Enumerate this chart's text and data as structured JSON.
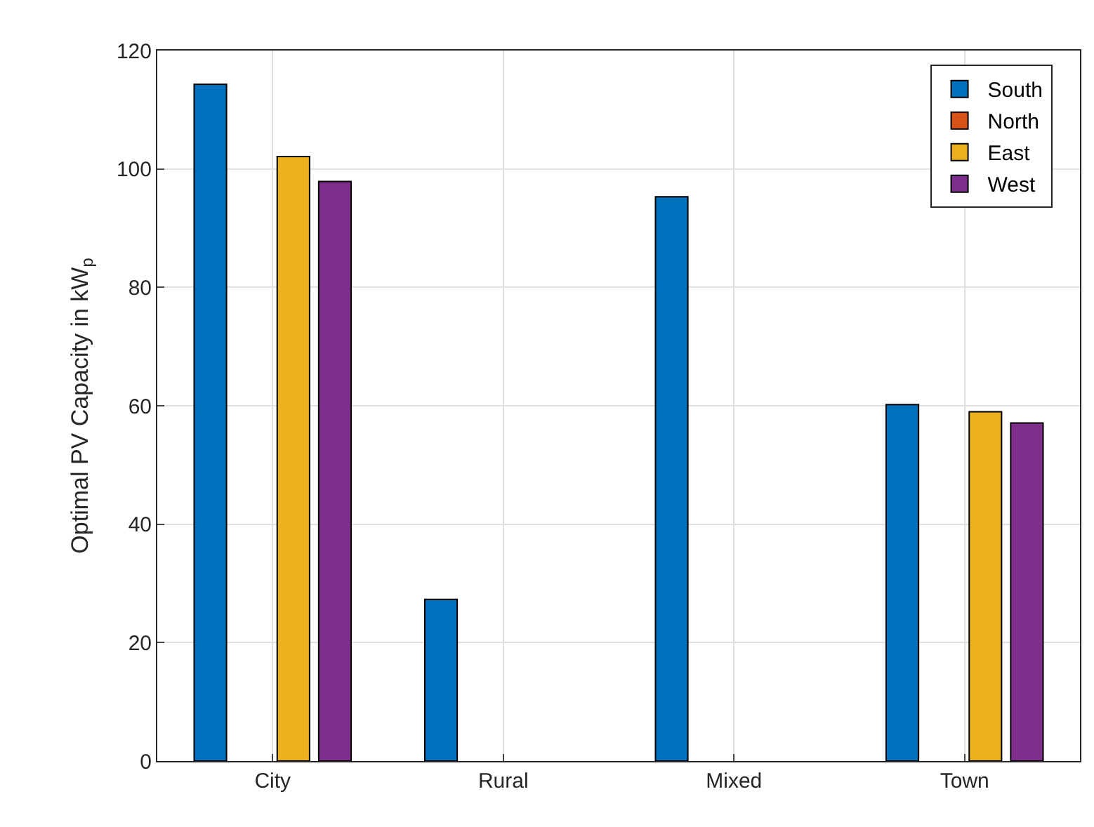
{
  "chart_data": {
    "type": "bar",
    "ylabel": "Optimal PV Capacity in kW$_{p}$",
    "categories": [
      "City",
      "Rural",
      "Mixed",
      "Town"
    ],
    "series": [
      {
        "name": "South",
        "color": "#0072bd",
        "values": [
          114.3,
          27.3,
          95.3,
          60.2
        ]
      },
      {
        "name": "North",
        "color": "#d95319",
        "values": [
          null,
          null,
          null,
          null
        ]
      },
      {
        "name": "East",
        "color": "#edb120",
        "values": [
          102.1,
          null,
          null,
          59.0
        ]
      },
      {
        "name": "West",
        "color": "#7e2f8e",
        "values": [
          97.9,
          null,
          null,
          57.1
        ]
      }
    ],
    "ylim": [
      0,
      120
    ],
    "yticks": [
      0,
      20,
      40,
      60,
      80,
      100,
      120
    ],
    "grid": true,
    "legend": "top right"
  }
}
